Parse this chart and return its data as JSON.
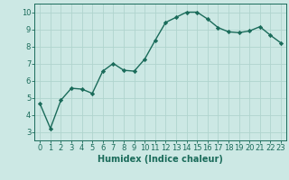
{
  "x": [
    0,
    1,
    2,
    3,
    4,
    5,
    6,
    7,
    8,
    9,
    10,
    11,
    12,
    13,
    14,
    15,
    16,
    17,
    18,
    19,
    20,
    21,
    22,
    23
  ],
  "y": [
    4.65,
    3.2,
    4.85,
    5.55,
    5.5,
    5.25,
    6.55,
    7.0,
    6.6,
    6.55,
    7.25,
    8.35,
    9.4,
    9.7,
    10.0,
    10.0,
    9.6,
    9.1,
    8.85,
    8.8,
    8.9,
    9.15,
    8.65,
    8.2
  ],
  "line_color": "#1a6b5a",
  "bg_color": "#cce8e4",
  "grid_color": "#b0d4ce",
  "xlabel": "Humidex (Indice chaleur)",
  "xlim": [
    -0.5,
    23.5
  ],
  "ylim": [
    2.5,
    10.5
  ],
  "yticks": [
    3,
    4,
    5,
    6,
    7,
    8,
    9,
    10
  ],
  "xticks": [
    0,
    1,
    2,
    3,
    4,
    5,
    6,
    7,
    8,
    9,
    10,
    11,
    12,
    13,
    14,
    15,
    16,
    17,
    18,
    19,
    20,
    21,
    22,
    23
  ],
  "tick_color": "#1a6b5a",
  "label_color": "#1a6b5a",
  "font_size_label": 7,
  "font_size_tick": 6,
  "marker": "D",
  "marker_size": 2.2,
  "line_width": 1.0
}
